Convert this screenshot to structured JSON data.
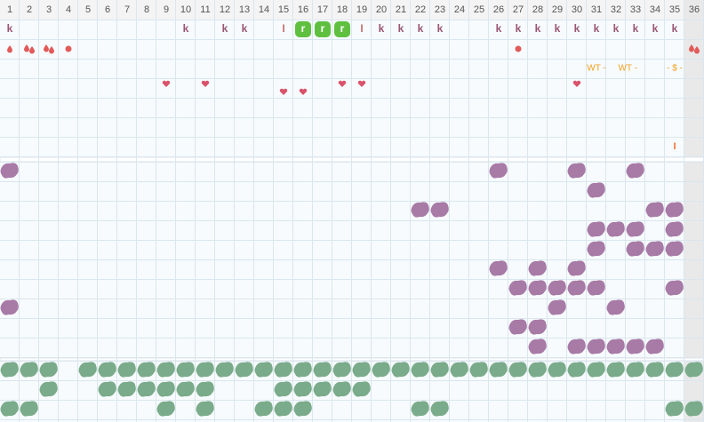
{
  "header": {
    "days": [
      1,
      2,
      3,
      4,
      5,
      6,
      7,
      8,
      9,
      10,
      11,
      12,
      13,
      14,
      15,
      16,
      17,
      18,
      19,
      20,
      21,
      22,
      23,
      24,
      25,
      26,
      27,
      28,
      29,
      30,
      31,
      32,
      33,
      34,
      35,
      36
    ]
  },
  "top": {
    "row1": [
      {
        "col": 1,
        "text": "k"
      },
      {
        "col": 10,
        "text": "k"
      },
      {
        "col": 12,
        "text": "k"
      },
      {
        "col": 13,
        "text": "k"
      },
      {
        "col": 15,
        "text": "I"
      },
      {
        "col": 19,
        "text": "I"
      },
      {
        "col": 20,
        "text": "k"
      },
      {
        "col": 21,
        "text": "k"
      },
      {
        "col": 22,
        "text": "k"
      },
      {
        "col": 23,
        "text": "k"
      },
      {
        "col": 26,
        "text": "k"
      },
      {
        "col": 27,
        "text": "k"
      },
      {
        "col": 28,
        "text": "k"
      },
      {
        "col": 29,
        "text": "k"
      },
      {
        "col": 30,
        "text": "k"
      },
      {
        "col": 31,
        "text": "k"
      },
      {
        "col": 32,
        "text": "k"
      },
      {
        "col": 33,
        "text": "k"
      },
      {
        "col": 34,
        "text": "k"
      },
      {
        "col": 35,
        "text": "k"
      }
    ],
    "green_marks": [
      {
        "col": 16,
        "text": "r"
      },
      {
        "col": 17,
        "text": "r"
      },
      {
        "col": 18,
        "text": "r"
      }
    ],
    "single_drops": [
      1
    ],
    "double_drops": [
      2,
      3,
      36
    ],
    "dots": [
      4,
      27
    ],
    "notes": [
      {
        "col": 31,
        "text": "WT -"
      },
      {
        "col": 32.6,
        "text": "WT -"
      },
      {
        "col": 35,
        "text": "- $ -"
      }
    ],
    "hearts": [
      9,
      11,
      18,
      19,
      30
    ],
    "hearts_low": [
      15,
      16
    ],
    "row7": [
      {
        "col": 35,
        "text": "I"
      }
    ]
  },
  "middle": [
    [
      1,
      26,
      30,
      33
    ],
    [
      31
    ],
    [
      22,
      23,
      34,
      35
    ],
    [
      31,
      32,
      33,
      35
    ],
    [
      31,
      33,
      34,
      35
    ],
    [
      26,
      28,
      30
    ],
    [
      27,
      28,
      29,
      30,
      31,
      35
    ],
    [
      1,
      29,
      32
    ],
    [
      27,
      28
    ],
    [
      28,
      30,
      31,
      32,
      33,
      34
    ]
  ],
  "bottom": [
    [
      1,
      2,
      3,
      5,
      6,
      7,
      8,
      9,
      10,
      11,
      12,
      13,
      14,
      15,
      16,
      17,
      18,
      19,
      20,
      21,
      22,
      23,
      24,
      25,
      26,
      27,
      28,
      29,
      30,
      31,
      32,
      33,
      34,
      35,
      36
    ],
    [
      3,
      6,
      7,
      8,
      9,
      10,
      11,
      15,
      16,
      17,
      18,
      19
    ],
    [
      1,
      2,
      9,
      11,
      14,
      15,
      16,
      22,
      23,
      35,
      36
    ]
  ]
}
